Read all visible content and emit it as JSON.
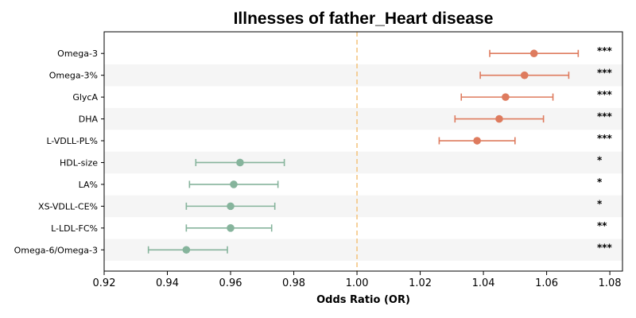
{
  "chart_data": {
    "type": "scatter",
    "title": "Illnesses of father_Heart disease",
    "xlabel": "Odds Ratio (OR)",
    "ylabel": "",
    "xlim": [
      0.92,
      1.084
    ],
    "xticks": [
      "0.92",
      "0.94",
      "0.96",
      "0.98",
      "1.00",
      "1.02",
      "1.04",
      "1.06",
      "1.08"
    ],
    "reference_line": 1.0,
    "reference_color": "#f3c27a",
    "positive_color": "#de7b5e",
    "negative_color": "#86b49c",
    "stripe_color": "#f5f5f5",
    "rows": [
      {
        "label": "Omega-3",
        "or": 1.056,
        "lo": 1.042,
        "hi": 1.07,
        "sig": "***"
      },
      {
        "label": "Omega-3%",
        "or": 1.053,
        "lo": 1.039,
        "hi": 1.067,
        "sig": "***"
      },
      {
        "label": "GlycA",
        "or": 1.047,
        "lo": 1.033,
        "hi": 1.062,
        "sig": "***"
      },
      {
        "label": "DHA",
        "or": 1.045,
        "lo": 1.031,
        "hi": 1.059,
        "sig": "***"
      },
      {
        "label": "L-VDLL-PL%",
        "or": 1.038,
        "lo": 1.026,
        "hi": 1.05,
        "sig": "***"
      },
      {
        "label": "HDL-size",
        "or": 0.963,
        "lo": 0.949,
        "hi": 0.977,
        "sig": "*"
      },
      {
        "label": "LA%",
        "or": 0.961,
        "lo": 0.947,
        "hi": 0.975,
        "sig": "*"
      },
      {
        "label": "XS-VDLL-CE%",
        "or": 0.96,
        "lo": 0.946,
        "hi": 0.974,
        "sig": "*"
      },
      {
        "label": "L-LDL-FC%",
        "or": 0.96,
        "lo": 0.946,
        "hi": 0.973,
        "sig": "**"
      },
      {
        "label": "Omega-6/Omega-3",
        "or": 0.946,
        "lo": 0.934,
        "hi": 0.959,
        "sig": "***"
      }
    ]
  }
}
